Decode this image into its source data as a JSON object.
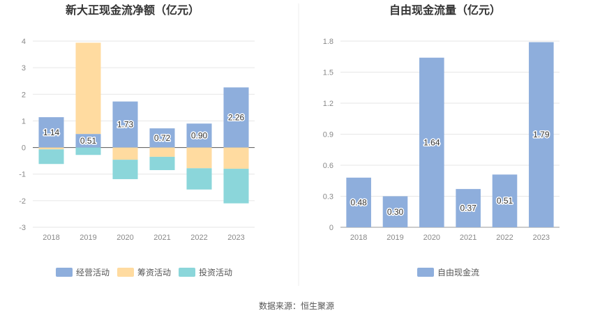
{
  "source": "数据来源：恒生聚源",
  "colors": {
    "operating": "#8EAEDC",
    "financing": "#FFDBA0",
    "investing": "#8BD6DA",
    "fcf": "#8EAEDC",
    "grid": "#E6E6E6",
    "axis": "#999999",
    "zero": "#555555"
  },
  "chart_data": [
    {
      "type": "bar",
      "stacked": true,
      "title": "新大正现金流净额（亿元）",
      "categories": [
        "2018",
        "2019",
        "2020",
        "2021",
        "2022",
        "2023"
      ],
      "yticks": [
        "-3",
        "-2",
        "-1",
        "0",
        "1",
        "2",
        "3",
        "4"
      ],
      "ylim": [
        -3,
        4
      ],
      "series": [
        {
          "name": "经营活动",
          "values": [
            1.14,
            0.51,
            1.73,
            0.72,
            0.9,
            2.26
          ],
          "labels": [
            "1.14",
            "0.51",
            "1.73",
            "0.72",
            "0.90",
            "2.26"
          ]
        },
        {
          "name": "筹资活动",
          "values": [
            -0.07,
            3.43,
            -0.46,
            -0.35,
            -0.78,
            -0.8
          ]
        },
        {
          "name": "投资活动",
          "values": [
            -0.55,
            -0.28,
            -0.73,
            -0.5,
            -0.8,
            -1.3
          ]
        }
      ],
      "legend": "bottom"
    },
    {
      "type": "bar",
      "title": "自由现金流量（亿元）",
      "categories": [
        "2018",
        "2019",
        "2020",
        "2021",
        "2022",
        "2023"
      ],
      "yticks": [
        "0",
        "0.3",
        "0.6",
        "0.9",
        "1.2",
        "1.5",
        "1.8"
      ],
      "ylim": [
        0,
        1.8
      ],
      "series": [
        {
          "name": "自由现金流",
          "values": [
            0.48,
            0.3,
            1.64,
            0.37,
            0.51,
            1.79
          ],
          "labels": [
            "0.48",
            "0.30",
            "1.64",
            "0.37",
            "0.51",
            "1.79"
          ]
        }
      ],
      "legend": "bottom"
    }
  ]
}
